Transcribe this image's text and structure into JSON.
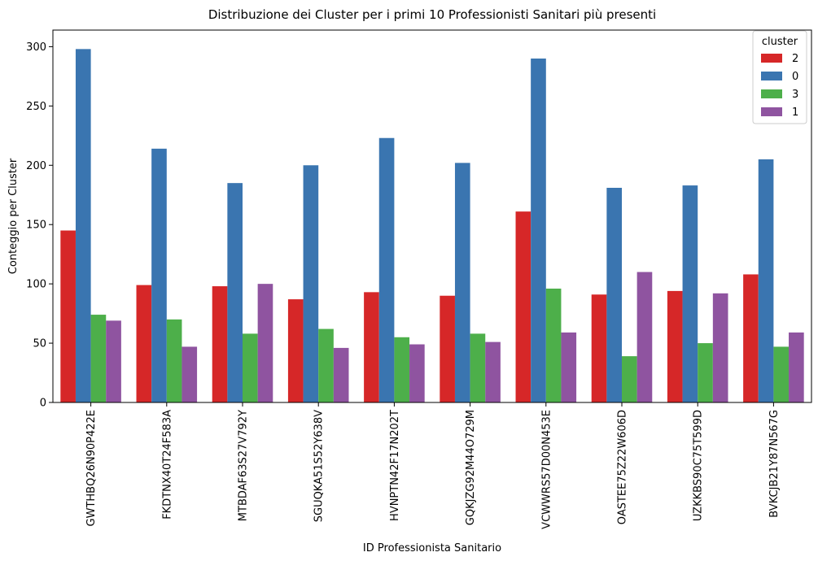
{
  "chart_data": {
    "type": "bar",
    "title": "Distribuzione dei Cluster per i primi 10 Professionisti Sanitari più presenti",
    "xlabel": "ID Professionista Sanitario",
    "ylabel": "Conteggio per Cluster",
    "ylim": [
      0,
      314
    ],
    "yticks": [
      0,
      50,
      100,
      150,
      200,
      250,
      300
    ],
    "grid": false,
    "legend": {
      "title": "cluster",
      "placement": "top-right"
    },
    "categories": [
      "GWTHBQ26N90P422E",
      "FKDTNX40T24F583A",
      "MTBDAF63S27V792Y",
      "SGUQKA51S52Y638V",
      "HVNPTN42F17N202T",
      "GQKJZG92M44O729M",
      "VCWWRS57D00N453E",
      "OASTEE75Z22W606D",
      "UZKKBS90C75T599D",
      "BVKCJB21Y87N567G"
    ],
    "series": [
      {
        "name": "2",
        "color": "#d62728",
        "values": [
          145,
          99,
          98,
          87,
          93,
          90,
          161,
          91,
          94,
          108
        ]
      },
      {
        "name": "0",
        "color": "#3a75b0",
        "values": [
          298,
          214,
          185,
          200,
          223,
          202,
          290,
          181,
          183,
          205
        ]
      },
      {
        "name": "3",
        "color": "#4daf4a",
        "values": [
          74,
          70,
          58,
          62,
          55,
          58,
          96,
          39,
          50,
          47
        ]
      },
      {
        "name": "1",
        "color": "#8f54a0",
        "values": [
          69,
          47,
          100,
          46,
          49,
          51,
          59,
          110,
          92,
          59
        ]
      }
    ]
  }
}
